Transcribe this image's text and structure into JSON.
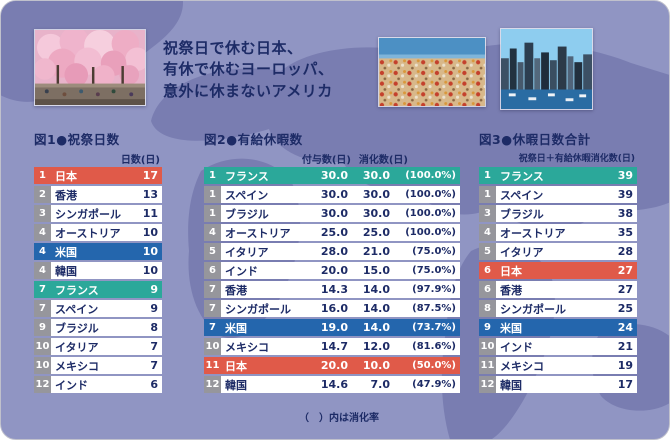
{
  "headline": {
    "line1": "祝祭日で休む日本、",
    "line2": "有休で休むヨーロッパ、",
    "line3": "意外に休まないアメリカ"
  },
  "footnote": "（　）内は消化率",
  "photos": [
    {
      "name": "cherry-blossom-photo",
      "alt": "桜の下で花見をする人々"
    },
    {
      "name": "beach-crowd-photo",
      "alt": "混雑したビーチ"
    },
    {
      "name": "city-skyline-photo",
      "alt": "都市の高層ビル群と港"
    }
  ],
  "colors": {
    "background": "#9095c3",
    "map": "#797db1",
    "row_default": "#ffffff",
    "rank_default": "#96969c",
    "text": "#1d2b66",
    "highlight_red": "#e05a49",
    "highlight_blue": "#2466ad",
    "highlight_teal": "#2ba89a"
  },
  "chart_data": [
    {
      "type": "table",
      "title": "図1●祝祭日数",
      "columns": [
        "日数(日)"
      ],
      "rows": [
        {
          "rank": 1,
          "country": "日本",
          "values": [
            "17"
          ],
          "highlight": "red"
        },
        {
          "rank": 2,
          "country": "香港",
          "values": [
            "13"
          ],
          "highlight": null
        },
        {
          "rank": 3,
          "country": "シンガポール",
          "values": [
            "11"
          ],
          "highlight": null
        },
        {
          "rank": 4,
          "country": "オーストリア",
          "values": [
            "10"
          ],
          "highlight": null
        },
        {
          "rank": 4,
          "country": "米国",
          "values": [
            "10"
          ],
          "highlight": "blue"
        },
        {
          "rank": 4,
          "country": "韓国",
          "values": [
            "10"
          ],
          "highlight": null
        },
        {
          "rank": 7,
          "country": "フランス",
          "values": [
            "9"
          ],
          "highlight": "teal"
        },
        {
          "rank": 7,
          "country": "スペイン",
          "values": [
            "9"
          ],
          "highlight": null
        },
        {
          "rank": 9,
          "country": "ブラジル",
          "values": [
            "8"
          ],
          "highlight": null
        },
        {
          "rank": 10,
          "country": "イタリア",
          "values": [
            "7"
          ],
          "highlight": null
        },
        {
          "rank": 10,
          "country": "メキシコ",
          "values": [
            "7"
          ],
          "highlight": null
        },
        {
          "rank": 12,
          "country": "インド",
          "values": [
            "6"
          ],
          "highlight": null
        }
      ]
    },
    {
      "type": "table",
      "title": "図2●有給休暇数",
      "columns": [
        "付与数(日)",
        "消化数(日)"
      ],
      "rows": [
        {
          "rank": 1,
          "country": "フランス",
          "values": [
            "30.0",
            "30.0",
            "(100.0%)"
          ],
          "highlight": "teal"
        },
        {
          "rank": 1,
          "country": "スペイン",
          "values": [
            "30.0",
            "30.0",
            "(100.0%)"
          ],
          "highlight": null
        },
        {
          "rank": 1,
          "country": "ブラジル",
          "values": [
            "30.0",
            "30.0",
            "(100.0%)"
          ],
          "highlight": null
        },
        {
          "rank": 4,
          "country": "オーストリア",
          "values": [
            "25.0",
            "25.0",
            "(100.0%)"
          ],
          "highlight": null
        },
        {
          "rank": 5,
          "country": "イタリア",
          "values": [
            "28.0",
            "21.0",
            "(75.0%)"
          ],
          "highlight": null
        },
        {
          "rank": 6,
          "country": "インド",
          "values": [
            "20.0",
            "15.0",
            "(75.0%)"
          ],
          "highlight": null
        },
        {
          "rank": 7,
          "country": "香港",
          "values": [
            "14.3",
            "14.0",
            "(97.9%)"
          ],
          "highlight": null
        },
        {
          "rank": 7,
          "country": "シンガポール",
          "values": [
            "16.0",
            "14.0",
            "(87.5%)"
          ],
          "highlight": null
        },
        {
          "rank": 7,
          "country": "米国",
          "values": [
            "19.0",
            "14.0",
            "(73.7%)"
          ],
          "highlight": "blue"
        },
        {
          "rank": 10,
          "country": "メキシコ",
          "values": [
            "14.7",
            "12.0",
            "(81.6%)"
          ],
          "highlight": null
        },
        {
          "rank": 11,
          "country": "日本",
          "values": [
            "20.0",
            "10.0",
            "(50.0%)"
          ],
          "highlight": "red"
        },
        {
          "rank": 12,
          "country": "韓国",
          "values": [
            "14.6",
            "7.0",
            "(47.9%)"
          ],
          "highlight": null
        }
      ]
    },
    {
      "type": "table",
      "title": "図3●休暇日数合計",
      "columns": [
        "祝祭日＋有給休暇消化数(日)"
      ],
      "rows": [
        {
          "rank": 1,
          "country": "フランス",
          "values": [
            "39"
          ],
          "highlight": "teal"
        },
        {
          "rank": 1,
          "country": "スペイン",
          "values": [
            "39"
          ],
          "highlight": null
        },
        {
          "rank": 3,
          "country": "ブラジル",
          "values": [
            "38"
          ],
          "highlight": null
        },
        {
          "rank": 4,
          "country": "オーストリア",
          "values": [
            "35"
          ],
          "highlight": null
        },
        {
          "rank": 5,
          "country": "イタリア",
          "values": [
            "28"
          ],
          "highlight": null
        },
        {
          "rank": 6,
          "country": "日本",
          "values": [
            "27"
          ],
          "highlight": "red"
        },
        {
          "rank": 6,
          "country": "香港",
          "values": [
            "27"
          ],
          "highlight": null
        },
        {
          "rank": 8,
          "country": "シンガポール",
          "values": [
            "25"
          ],
          "highlight": null
        },
        {
          "rank": 9,
          "country": "米国",
          "values": [
            "24"
          ],
          "highlight": "blue"
        },
        {
          "rank": 10,
          "country": "インド",
          "values": [
            "21"
          ],
          "highlight": null
        },
        {
          "rank": 11,
          "country": "メキシコ",
          "values": [
            "19"
          ],
          "highlight": null
        },
        {
          "rank": 12,
          "country": "韓国",
          "values": [
            "17"
          ],
          "highlight": null
        }
      ]
    }
  ]
}
